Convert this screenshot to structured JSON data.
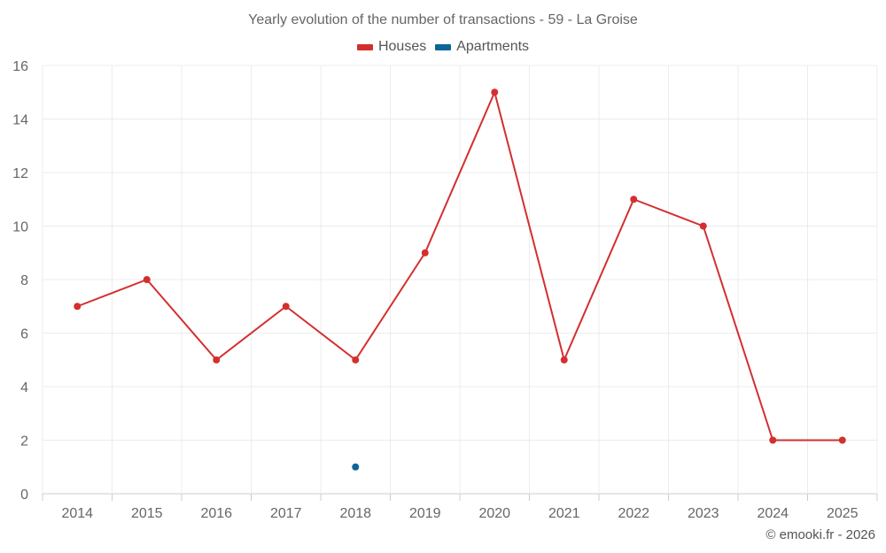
{
  "chart_data": {
    "type": "line",
    "title": "Yearly evolution of the number of transactions - 59 - La Groise",
    "categories": [
      "2014",
      "2015",
      "2016",
      "2017",
      "2018",
      "2019",
      "2020",
      "2021",
      "2022",
      "2023",
      "2024",
      "2025"
    ],
    "series": [
      {
        "name": "Houses",
        "color": "#d32f2f",
        "values": [
          7,
          8,
          5,
          7,
          5,
          9,
          15,
          5,
          11,
          10,
          2,
          2
        ]
      },
      {
        "name": "Apartments",
        "color": "#0b6699",
        "values": [
          null,
          null,
          null,
          null,
          1,
          null,
          null,
          null,
          null,
          null,
          null,
          null
        ]
      }
    ],
    "ylim": [
      0,
      16
    ],
    "yticks": [
      0,
      2,
      4,
      6,
      8,
      10,
      12,
      14,
      16
    ],
    "xlabel": "",
    "ylabel": "",
    "grid": true,
    "legend_position": "top-center"
  },
  "legend": {
    "houses_label": "Houses",
    "apartments_label": "Apartments"
  },
  "footer": {
    "credit": "© emooki.fr - 2026"
  }
}
